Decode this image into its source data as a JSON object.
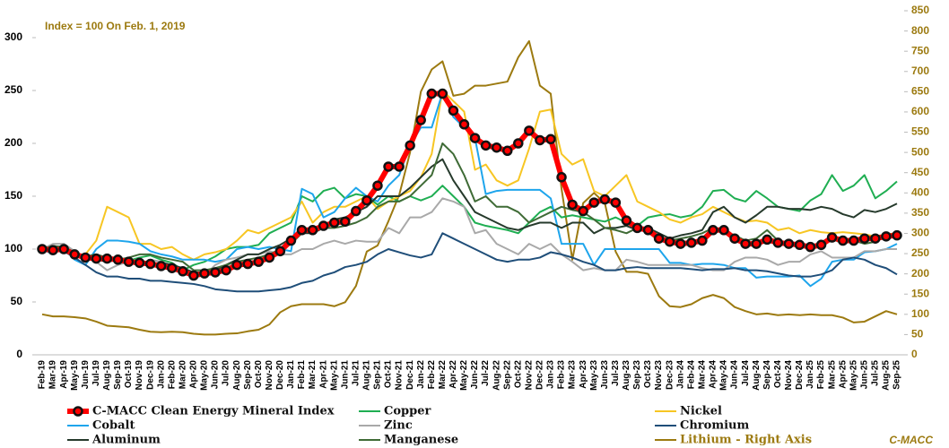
{
  "chart_data": {
    "type": "line",
    "annotation": "Index = 100 On Feb. 1, 2019",
    "source": "C-MACC",
    "legend": "bottom",
    "grid": false,
    "categories": [
      "Feb-19",
      "Mar-19",
      "Apr-19",
      "May-19",
      "Jun-19",
      "Jul-19",
      "Aug-19",
      "Sep-19",
      "Oct-19",
      "Nov-19",
      "Dec-19",
      "Jan-20",
      "Feb-20",
      "Mar-20",
      "Apr-20",
      "May-20",
      "Jun-20",
      "Jul-20",
      "Aug-20",
      "Sep-20",
      "Oct-20",
      "Nov-20",
      "Dec-20",
      "Jan-21",
      "Feb-21",
      "Mar-21",
      "Apr-21",
      "May-21",
      "Jun-21",
      "Jul-21",
      "Aug-21",
      "Sep-21",
      "Oct-21",
      "Nov-21",
      "Dec-21",
      "Jan-22",
      "Feb-22",
      "Mar-22",
      "Apr-22",
      "May-22",
      "Jun-22",
      "Jul-22",
      "Aug-22",
      "Sep-22",
      "Oct-22",
      "Nov-22",
      "Dec-22",
      "Jan-23",
      "Feb-23",
      "Mar-23",
      "Apr-23",
      "May-23",
      "Jun-23",
      "Jul-23",
      "Aug-23",
      "Sep-23",
      "Oct-23",
      "Nov-23",
      "Dec-23",
      "Jan-24",
      "Feb-24",
      "Mar-24",
      "Apr-24",
      "May-24",
      "Jun-24",
      "Jul-24",
      "Aug-24",
      "Sep-24",
      "Oct-24",
      "Nov-24",
      "Dec-24",
      "Jan-25",
      "Feb-25",
      "Mar-25",
      "Apr-25",
      "May-25",
      "Jun-25",
      "Jul-25",
      "Aug-25",
      "Sep-25"
    ],
    "ylim": [
      0,
      300
    ],
    "yticks": [
      0,
      50,
      100,
      150,
      200,
      250,
      300
    ],
    "y2lim": [
      0,
      850
    ],
    "y2ticks": [
      0,
      50,
      100,
      150,
      200,
      250,
      300,
      350,
      400,
      450,
      500,
      550,
      600,
      650,
      700,
      750,
      800,
      850
    ],
    "series": [
      {
        "name": "C-MACC Clean Energy Mineral Index",
        "color": "#ff0000",
        "marker": "circle",
        "values": [
          100,
          99,
          100,
          95,
          92,
          91,
          91,
          90,
          88,
          87,
          86,
          84,
          82,
          79,
          75,
          77,
          78,
          80,
          85,
          86,
          88,
          92,
          98,
          108,
          118,
          118,
          122,
          125,
          126,
          136,
          146,
          160,
          178,
          178,
          198,
          222,
          247,
          247,
          231,
          218,
          205,
          198,
          196,
          193,
          200,
          212,
          203,
          204,
          168,
          142,
          136,
          144,
          147,
          144,
          127,
          120,
          118,
          110,
          107,
          105,
          106,
          108,
          118,
          118,
          110,
          105,
          105,
          109,
          106,
          105,
          104,
          102,
          104,
          111,
          108,
          108,
          110,
          110,
          112,
          113
        ]
      },
      {
        "name": "Copper",
        "color": "#1fae52",
        "values": [
          100,
          97,
          100,
          94,
          90,
          93,
          88,
          90,
          89,
          92,
          94,
          90,
          87,
          80,
          85,
          88,
          93,
          100,
          102,
          102,
          104,
          115,
          120,
          125,
          150,
          145,
          155,
          158,
          148,
          152,
          150,
          142,
          150,
          145,
          150,
          146,
          150,
          160,
          150,
          140,
          125,
          122,
          120,
          118,
          115,
          125,
          135,
          140,
          130,
          132,
          130,
          128,
          126,
          130,
          125,
          122,
          130,
          132,
          133,
          130,
          132,
          140,
          155,
          156,
          148,
          145,
          155,
          148,
          140,
          138,
          136,
          146,
          152,
          170,
          155,
          160,
          170,
          148,
          155,
          164
        ]
      },
      {
        "name": "Nickel",
        "color": "#f7c623",
        "values": [
          100,
          103,
          100,
          95,
          95,
          108,
          140,
          135,
          130,
          105,
          105,
          100,
          102,
          95,
          90,
          95,
          97,
          100,
          108,
          118,
          115,
          120,
          125,
          130,
          145,
          125,
          135,
          140,
          140,
          145,
          150,
          138,
          145,
          150,
          155,
          168,
          190,
          250,
          240,
          230,
          175,
          180,
          165,
          160,
          165,
          195,
          230,
          232,
          190,
          180,
          185,
          155,
          150,
          160,
          170,
          145,
          140,
          135,
          128,
          125,
          130,
          133,
          140,
          135,
          130,
          126,
          127,
          125,
          118,
          120,
          115,
          118,
          116,
          115,
          116,
          115,
          114,
          112,
          114,
          115
        ]
      },
      {
        "name": "Cobalt",
        "color": "#1ea5ec",
        "values": [
          100,
          95,
          105,
          90,
          85,
          100,
          108,
          108,
          107,
          105,
          98,
          95,
          93,
          90,
          90,
          90,
          88,
          90,
          100,
          102,
          100,
          102,
          100,
          98,
          157,
          152,
          130,
          135,
          148,
          158,
          150,
          145,
          160,
          170,
          198,
          215,
          215,
          248,
          225,
          215,
          205,
          152,
          155,
          156,
          156,
          156,
          156,
          148,
          105,
          105,
          105,
          85,
          100,
          100,
          100,
          100,
          100,
          100,
          87,
          87,
          85,
          86,
          86,
          85,
          82,
          82,
          73,
          74,
          74,
          74,
          75,
          65,
          72,
          88,
          90,
          90,
          97,
          98,
          100,
          105
        ]
      },
      {
        "name": "Zinc",
        "color": "#a9a9a9",
        "values": [
          100,
          105,
          105,
          98,
          92,
          88,
          80,
          85,
          88,
          85,
          90,
          88,
          85,
          80,
          75,
          75,
          85,
          90,
          92,
          95,
          95,
          98,
          95,
          95,
          100,
          100,
          105,
          108,
          105,
          108,
          107,
          107,
          120,
          115,
          130,
          130,
          135,
          148,
          145,
          140,
          115,
          118,
          105,
          100,
          95,
          105,
          100,
          105,
          95,
          88,
          80,
          82,
          80,
          80,
          90,
          88,
          85,
          85,
          85,
          85,
          85,
          82,
          80,
          80,
          88,
          92,
          92,
          90,
          85,
          88,
          88,
          95,
          98,
          92,
          92,
          92,
          98,
          98,
          100,
          100
        ]
      },
      {
        "name": "Chromium",
        "color": "#1f4e79",
        "values": [
          100,
          98,
          98,
          92,
          85,
          78,
          74,
          74,
          72,
          72,
          70,
          70,
          69,
          68,
          67,
          65,
          62,
          61,
          60,
          60,
          60,
          61,
          62,
          64,
          68,
          70,
          75,
          78,
          83,
          85,
          88,
          95,
          100,
          97,
          94,
          92,
          95,
          115,
          110,
          105,
          100,
          95,
          90,
          88,
          90,
          90,
          92,
          97,
          95,
          92,
          88,
          85,
          80,
          80,
          82,
          83,
          82,
          82,
          82,
          82,
          81,
          80,
          81,
          81,
          82,
          80,
          80,
          79,
          77,
          75,
          74,
          74,
          76,
          80,
          90,
          92,
          90,
          85,
          82,
          76
        ]
      },
      {
        "name": "Aluminum",
        "color": "#263a2c",
        "values": [
          100,
          98,
          100,
          92,
          93,
          90,
          88,
          90,
          88,
          87,
          86,
          87,
          85,
          82,
          78,
          78,
          80,
          85,
          90,
          95,
          95,
          100,
          104,
          110,
          115,
          115,
          120,
          128,
          130,
          135,
          140,
          150,
          150,
          150,
          158,
          168,
          178,
          185,
          165,
          150,
          135,
          130,
          125,
          120,
          118,
          122,
          125,
          125,
          120,
          125,
          125,
          115,
          120,
          120,
          122,
          118,
          120,
          115,
          110,
          113,
          115,
          118,
          135,
          140,
          130,
          125,
          132,
          140,
          140,
          138,
          138,
          137,
          140,
          138,
          133,
          130,
          137,
          135,
          138,
          143
        ]
      },
      {
        "name": "Manganese",
        "color": "#3f6b36",
        "values": [
          100,
          103,
          102,
          97,
          93,
          95,
          92,
          90,
          92,
          95,
          95,
          92,
          90,
          88,
          80,
          80,
          82,
          85,
          88,
          90,
          92,
          95,
          100,
          105,
          115,
          118,
          120,
          120,
          122,
          125,
          130,
          140,
          145,
          145,
          150,
          160,
          170,
          200,
          190,
          170,
          145,
          150,
          140,
          140,
          135,
          125,
          130,
          135,
          140,
          137,
          135,
          128,
          120,
          118,
          115,
          120,
          118,
          110,
          108,
          110,
          112,
          115,
          120,
          117,
          113,
          108,
          110,
          118,
          108,
          105,
          105,
          102,
          103,
          110,
          105,
          108,
          105,
          107,
          112,
          113
        ]
      },
      {
        "name": "Lithium - Right Axis",
        "color": "#9c7a10",
        "axis": "y2",
        "values": [
          100,
          95,
          95,
          93,
          90,
          82,
          72,
          70,
          68,
          62,
          57,
          56,
          57,
          56,
          52,
          50,
          50,
          52,
          53,
          58,
          62,
          75,
          105,
          120,
          125,
          125,
          125,
          120,
          130,
          170,
          255,
          270,
          330,
          395,
          500,
          650,
          705,
          725,
          640,
          645,
          665,
          665,
          670,
          675,
          735,
          775,
          665,
          645,
          410,
          235,
          375,
          400,
          375,
          255,
          205,
          205,
          200,
          145,
          120,
          118,
          125,
          140,
          148,
          140,
          118,
          108,
          100,
          102,
          98,
          100,
          98,
          100,
          98,
          98,
          92,
          80,
          82,
          95,
          108,
          100
        ]
      }
    ]
  }
}
